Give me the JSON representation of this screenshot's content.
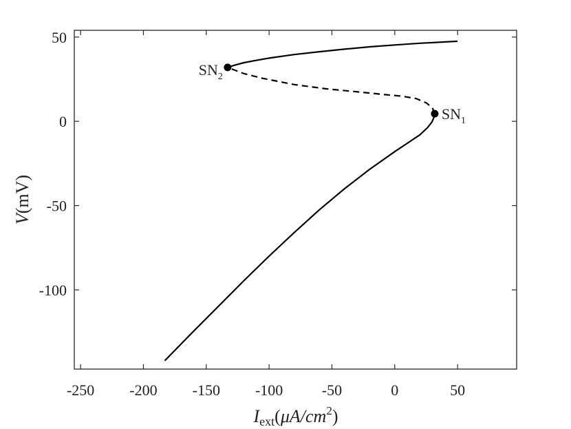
{
  "chart_data": {
    "type": "line",
    "title": "",
    "xlabel": {
      "symbol": "I",
      "subscript": "ext",
      "units_open": "(",
      "units_mu": "μ",
      "units_body": "A/cm",
      "units_sup": "2",
      "units_close": ")"
    },
    "ylabel": {
      "symbol": "V",
      "units": "(mV)"
    },
    "xlim": [
      -255,
      97
    ],
    "ylim": [
      -147,
      54
    ],
    "xticks": [
      -250,
      -200,
      -150,
      -100,
      -50,
      0,
      50
    ],
    "xtick_labels": [
      "-250",
      "-200",
      "-150",
      "-100",
      "-50",
      "0",
      "50"
    ],
    "yticks": [
      -100,
      -50,
      0,
      50
    ],
    "ytick_labels": [
      "-100",
      "-50",
      "0",
      "50"
    ],
    "grid": false,
    "series": [
      {
        "style": "solid",
        "x": [
          -183,
          -160,
          -140,
          -120,
          -100,
          -80,
          -60,
          -40,
          -20,
          0,
          10,
          20,
          26,
          29.5,
          31,
          31.8
        ],
        "y": [
          -142,
          -124.5,
          -109.5,
          -94.5,
          -80,
          -66,
          -52.5,
          -40,
          -28.5,
          -18,
          -13,
          -8,
          -3.8,
          -0.5,
          2,
          4.5
        ]
      },
      {
        "style": "dashed",
        "x": [
          31.8,
          30,
          25,
          17,
          5,
          -10,
          -30,
          -55,
          -80,
          -105,
          -120,
          -133
        ],
        "y": [
          4.5,
          8,
          11,
          13.5,
          15,
          16,
          17.5,
          19.3,
          21.8,
          25.5,
          28.3,
          32
        ]
      },
      {
        "style": "solid",
        "x": [
          -133,
          -128,
          -120,
          -110,
          -100,
          -80,
          -60,
          -40,
          -20,
          0,
          20,
          40,
          50
        ],
        "y": [
          32,
          33.2,
          34.8,
          36.2,
          37.5,
          39.6,
          41.3,
          42.8,
          44.2,
          45.3,
          46.3,
          47.1,
          47.5
        ]
      }
    ],
    "points": [
      {
        "label": "SN",
        "subscript": "1",
        "x": 31.8,
        "y": 4.5
      },
      {
        "label": "SN",
        "subscript": "2",
        "x": -133,
        "y": 32
      }
    ]
  }
}
